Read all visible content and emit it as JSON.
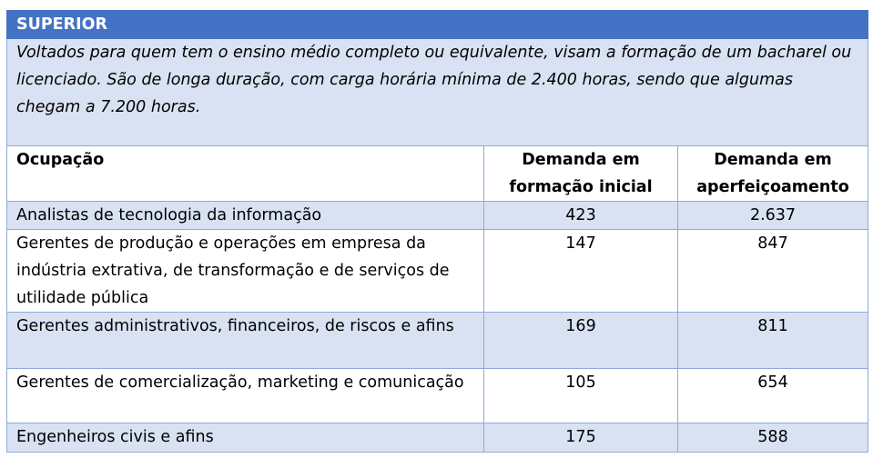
{
  "section_title": "SUPERIOR",
  "description": "Voltados para quem tem o ensino médio completo ou equivalente, visam a formação de um bacharel ou licenciado. São de longa duração, com carga horária mínima de 2.400 horas, sendo que algumas chegam a 7.200 horas.",
  "columns": [
    "Ocupação",
    "Demanda em formação inicial",
    "Demanda em aperfeiçoamento"
  ],
  "rows": [
    {
      "ocupacao": "Analistas de tecnologia da informação",
      "inicial": "423",
      "aperfeicoamento": "2.637"
    },
    {
      "ocupacao": "Gerentes de produção e operações em empresa da indústria extrativa, de transformação e de serviços de utilidade pública",
      "inicial": "147",
      "aperfeicoamento": "847"
    },
    {
      "ocupacao": "Gerentes administrativos, financeiros, de riscos e afins",
      "inicial": "169",
      "aperfeicoamento": "811"
    },
    {
      "ocupacao": "Gerentes de comercialização, marketing e comunicação",
      "inicial": "105",
      "aperfeicoamento": "654"
    },
    {
      "ocupacao": "Engenheiros civis e afins",
      "inicial": "175",
      "aperfeicoamento": "588"
    }
  ],
  "colors": {
    "header_blue": "#4472c4",
    "band_light_blue": "#d9e2f3",
    "border": "#8eaadb"
  }
}
